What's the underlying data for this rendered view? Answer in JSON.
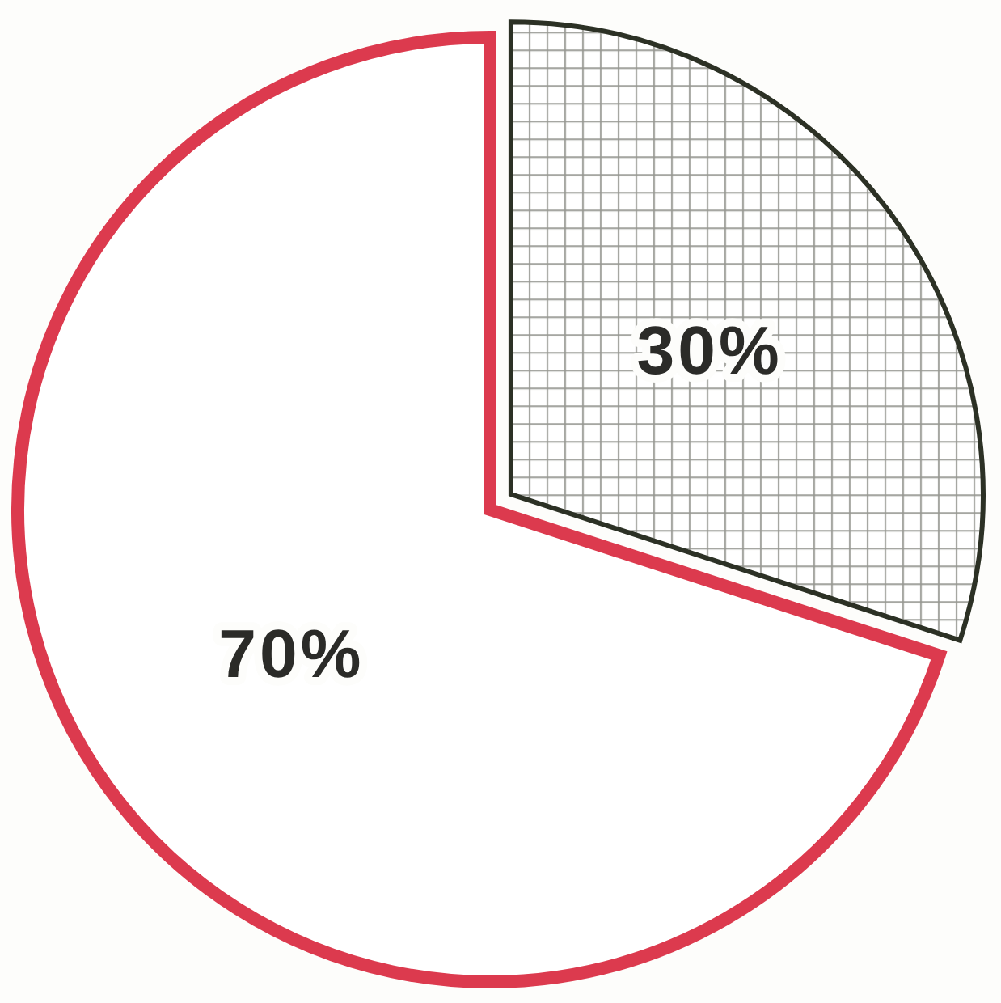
{
  "chart_data": {
    "type": "pie",
    "categories": [
      null,
      null
    ],
    "values": [
      30,
      70
    ],
    "colors": [
      "#2c3125",
      "#dc3a4e"
    ],
    "value_labels": [
      "30%",
      "70%"
    ]
  }
}
